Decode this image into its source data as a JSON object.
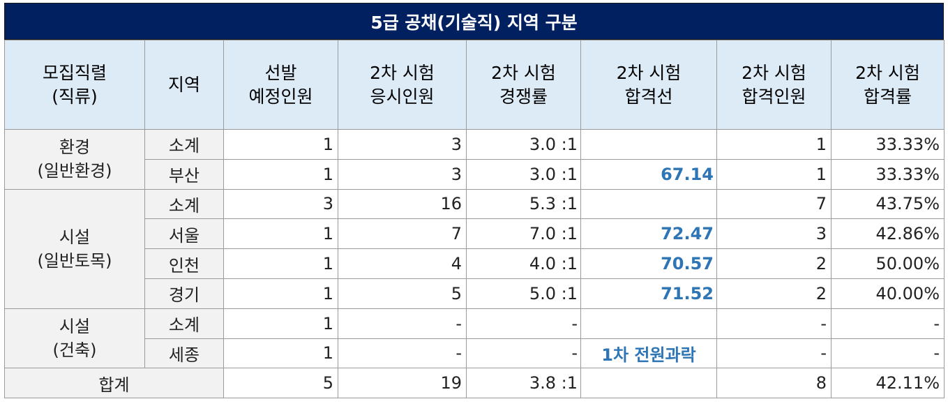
{
  "title": "5급 공채(기술직) 지역 구분",
  "headers": [
    [
      "모집직렬",
      "(직류)"
    ],
    [
      "지역"
    ],
    [
      "선발",
      "예정인원"
    ],
    [
      "2차 시험",
      "응시인원"
    ],
    [
      "2차 시험",
      "경쟁률"
    ],
    [
      "2차 시험",
      "합격선"
    ],
    [
      "2차 시험",
      "합격인원"
    ],
    [
      "2차 시험",
      "합격률"
    ]
  ],
  "groups": [
    {
      "name": [
        "환경",
        "(일반환경)"
      ],
      "rows": [
        {
          "region": "소계",
          "planned": "1",
          "applicants": "3",
          "ratio": "3.0 :1",
          "cutoff": "",
          "passed": "1",
          "rate": "33.33%"
        },
        {
          "region": "부산",
          "planned": "1",
          "applicants": "3",
          "ratio": "3.0 :1",
          "cutoff": "67.14",
          "passed": "1",
          "rate": "33.33%"
        }
      ]
    },
    {
      "name": [
        "시설",
        "(일반토목)"
      ],
      "rows": [
        {
          "region": "소계",
          "planned": "3",
          "applicants": "16",
          "ratio": "5.3 :1",
          "cutoff": "",
          "passed": "7",
          "rate": "43.75%"
        },
        {
          "region": "서울",
          "planned": "1",
          "applicants": "7",
          "ratio": "7.0 :1",
          "cutoff": "72.47",
          "passed": "3",
          "rate": "42.86%"
        },
        {
          "region": "인천",
          "planned": "1",
          "applicants": "4",
          "ratio": "4.0 :1",
          "cutoff": "70.57",
          "passed": "2",
          "rate": "50.00%"
        },
        {
          "region": "경기",
          "planned": "1",
          "applicants": "5",
          "ratio": "5.0 :1",
          "cutoff": "71.52",
          "passed": "2",
          "rate": "40.00%"
        }
      ]
    },
    {
      "name": [
        "시설",
        "(건축)"
      ],
      "rows": [
        {
          "region": "소계",
          "planned": "1",
          "applicants": "-",
          "ratio": "-",
          "cutoff": "",
          "passed": "-",
          "rate": "-"
        },
        {
          "region": "세종",
          "planned": "1",
          "applicants": "-",
          "ratio": "-",
          "cutoff": "1차 전원과락",
          "passed": "-",
          "rate": "-"
        }
      ]
    }
  ],
  "total": {
    "label": "합계",
    "planned": "5",
    "applicants": "19",
    "ratio": "3.8 :1",
    "cutoff": "",
    "passed": "8",
    "rate": "42.11%"
  }
}
